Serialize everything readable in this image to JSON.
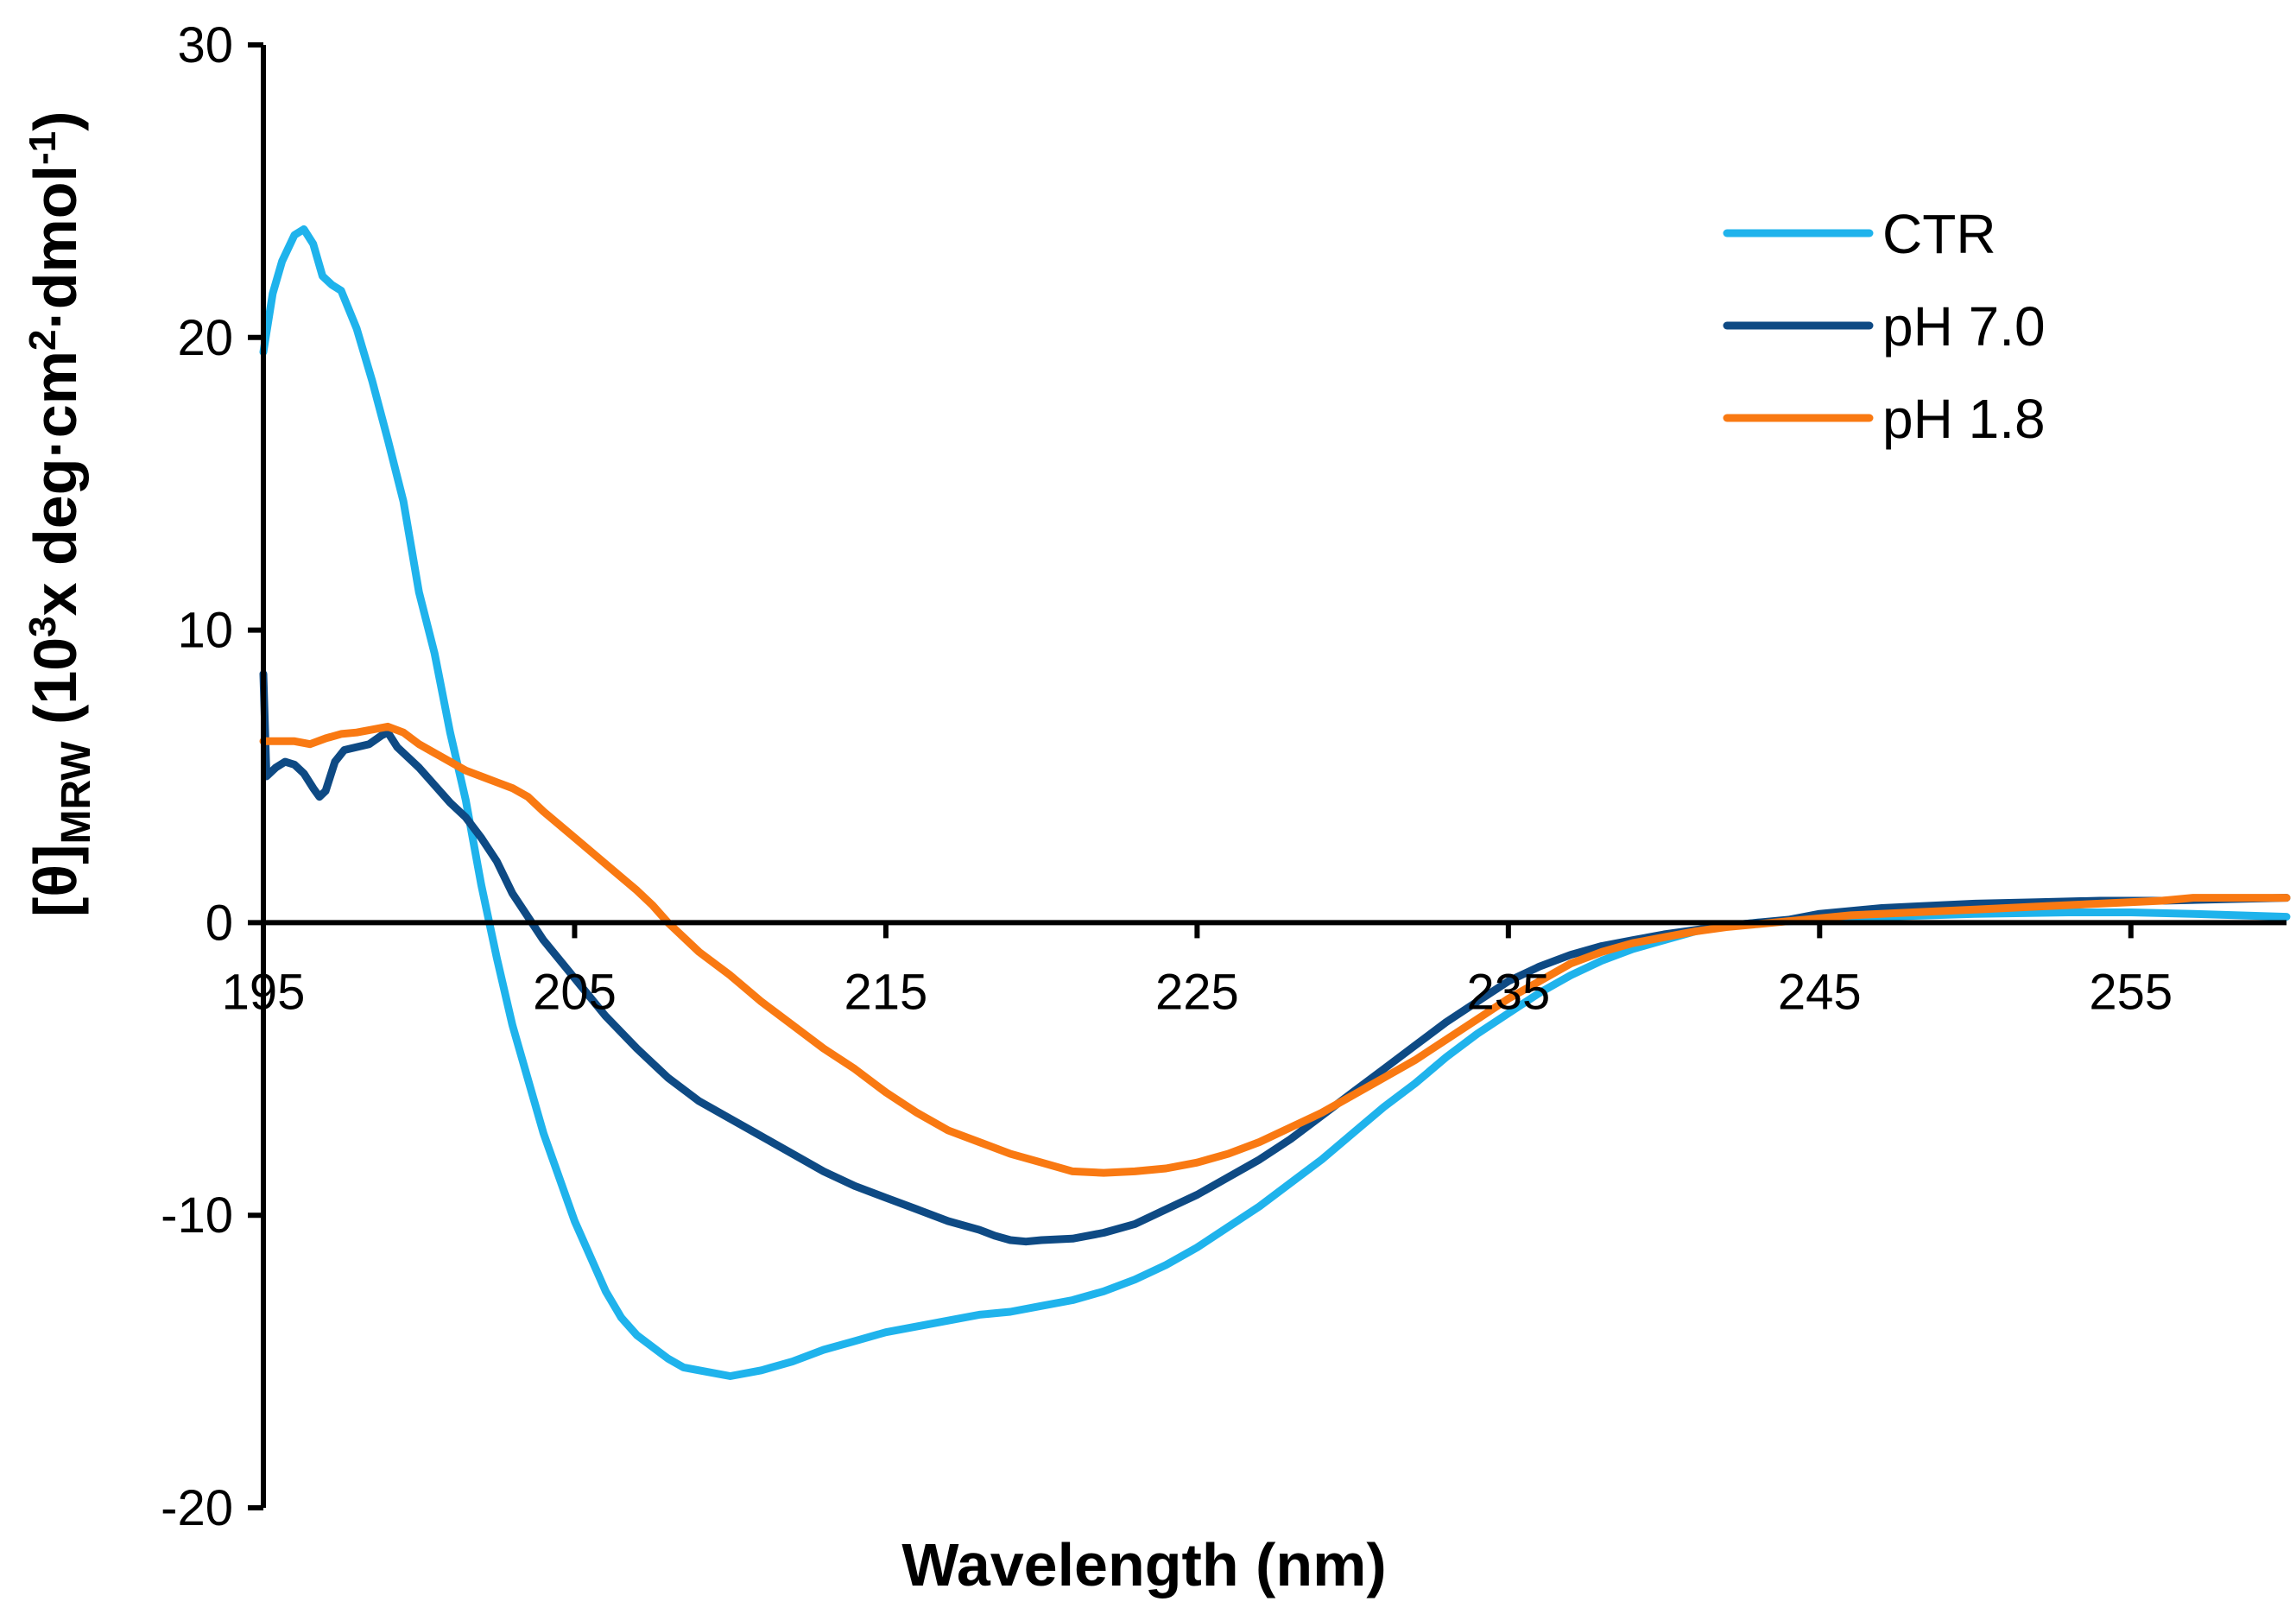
{
  "chart_data": {
    "type": "line",
    "title": "",
    "xlabel": "Wavelength (nm)",
    "ylabel": {
      "prefix": "[θ]",
      "sub": "MRW",
      "text1": " (10",
      "sup1": "3",
      "text2": "x deg·cm",
      "sup2": "2",
      "text3": "·dmol",
      "sup3": "-1",
      "text4": ")"
    },
    "xlim": [
      195,
      260
    ],
    "ylim": [
      -20,
      30
    ],
    "x_ticks": [
      195,
      205,
      215,
      225,
      235,
      245,
      255
    ],
    "x_tick_labels": [
      "195",
      "205",
      "215",
      "225",
      "235",
      "245",
      "255"
    ],
    "y_ticks": [
      -20,
      -10,
      0,
      10,
      20,
      30
    ],
    "y_tick_labels": [
      "-20",
      "-10",
      "0",
      "10",
      "20",
      "30"
    ],
    "legend_position": "top-right",
    "series": [
      {
        "name": "CTR",
        "color": "#1FB3EC",
        "points": [
          [
            195,
            19.5
          ],
          [
            195.3,
            21.5
          ],
          [
            195.6,
            22.6
          ],
          [
            196,
            23.5
          ],
          [
            196.3,
            23.7
          ],
          [
            196.6,
            23.2
          ],
          [
            196.9,
            22.1
          ],
          [
            197.2,
            21.8
          ],
          [
            197.5,
            21.6
          ],
          [
            198,
            20.3
          ],
          [
            198.5,
            18.5
          ],
          [
            199,
            16.5
          ],
          [
            199.5,
            14.4
          ],
          [
            200,
            11.3
          ],
          [
            200.5,
            9.2
          ],
          [
            201,
            6.5
          ],
          [
            201.5,
            4.2
          ],
          [
            202,
            1.3
          ],
          [
            202.5,
            -1.2
          ],
          [
            203,
            -3.5
          ],
          [
            204,
            -7.2
          ],
          [
            205,
            -10.2
          ],
          [
            206,
            -12.6
          ],
          [
            206.5,
            -13.5
          ],
          [
            207,
            -14.1
          ],
          [
            208,
            -14.9
          ],
          [
            208.5,
            -15.2
          ],
          [
            209,
            -15.3
          ],
          [
            210,
            -15.5
          ],
          [
            211,
            -15.3
          ],
          [
            212,
            -15.0
          ],
          [
            213,
            -14.6
          ],
          [
            214,
            -14.3
          ],
          [
            215,
            -14.0
          ],
          [
            216,
            -13.8
          ],
          [
            217,
            -13.6
          ],
          [
            218,
            -13.4
          ],
          [
            219,
            -13.3
          ],
          [
            220,
            -13.1
          ],
          [
            221,
            -12.9
          ],
          [
            222,
            -12.6
          ],
          [
            223,
            -12.2
          ],
          [
            224,
            -11.7
          ],
          [
            225,
            -11.1
          ],
          [
            226,
            -10.4
          ],
          [
            227,
            -9.7
          ],
          [
            228,
            -8.9
          ],
          [
            229,
            -8.1
          ],
          [
            230,
            -7.2
          ],
          [
            231,
            -6.3
          ],
          [
            232,
            -5.5
          ],
          [
            233,
            -4.6
          ],
          [
            234,
            -3.8
          ],
          [
            235,
            -3.1
          ],
          [
            236,
            -2.4
          ],
          [
            237,
            -1.8
          ],
          [
            238,
            -1.3
          ],
          [
            239,
            -0.9
          ],
          [
            240,
            -0.6
          ],
          [
            241,
            -0.3
          ],
          [
            242,
            -0.1
          ],
          [
            243,
            0.0
          ],
          [
            244,
            0.05
          ],
          [
            245,
            0.1
          ],
          [
            247,
            0.2
          ],
          [
            250,
            0.3
          ],
          [
            253,
            0.35
          ],
          [
            255,
            0.35
          ],
          [
            257,
            0.3
          ],
          [
            260,
            0.2
          ]
        ]
      },
      {
        "name": "pH 7.0",
        "color": "#0E4A84",
        "points": [
          [
            195,
            8.5
          ],
          [
            195.1,
            5.0
          ],
          [
            195.4,
            5.3
          ],
          [
            195.7,
            5.5
          ],
          [
            196,
            5.4
          ],
          [
            196.3,
            5.1
          ],
          [
            196.6,
            4.6
          ],
          [
            196.8,
            4.3
          ],
          [
            197,
            4.5
          ],
          [
            197.3,
            5.5
          ],
          [
            197.6,
            5.9
          ],
          [
            198,
            6.0
          ],
          [
            198.4,
            6.1
          ],
          [
            198.8,
            6.4
          ],
          [
            199,
            6.5
          ],
          [
            199.3,
            6.0
          ],
          [
            200,
            5.3
          ],
          [
            200.5,
            4.7
          ],
          [
            201,
            4.1
          ],
          [
            201.5,
            3.6
          ],
          [
            202,
            2.9
          ],
          [
            202.5,
            2.1
          ],
          [
            203,
            1.0
          ],
          [
            204,
            -0.6
          ],
          [
            205,
            -1.9
          ],
          [
            206,
            -3.2
          ],
          [
            207,
            -4.3
          ],
          [
            208,
            -5.3
          ],
          [
            209,
            -6.1
          ],
          [
            210,
            -6.7
          ],
          [
            211,
            -7.3
          ],
          [
            212,
            -7.9
          ],
          [
            213,
            -8.5
          ],
          [
            214,
            -9.0
          ],
          [
            215,
            -9.4
          ],
          [
            216,
            -9.8
          ],
          [
            217,
            -10.2
          ],
          [
            218,
            -10.5
          ],
          [
            218.5,
            -10.7
          ],
          [
            219,
            -10.85
          ],
          [
            219.5,
            -10.9
          ],
          [
            220,
            -10.85
          ],
          [
            221,
            -10.8
          ],
          [
            222,
            -10.6
          ],
          [
            223,
            -10.3
          ],
          [
            224,
            -9.8
          ],
          [
            225,
            -9.3
          ],
          [
            226,
            -8.7
          ],
          [
            227,
            -8.1
          ],
          [
            228,
            -7.4
          ],
          [
            229,
            -6.6
          ],
          [
            230,
            -5.8
          ],
          [
            231,
            -5.0
          ],
          [
            232,
            -4.2
          ],
          [
            233,
            -3.4
          ],
          [
            234,
            -2.7
          ],
          [
            235,
            -2.0
          ],
          [
            236,
            -1.5
          ],
          [
            237,
            -1.1
          ],
          [
            238,
            -0.8
          ],
          [
            239,
            -0.6
          ],
          [
            240,
            -0.4
          ],
          [
            241,
            -0.25
          ],
          [
            242,
            -0.1
          ],
          [
            243,
            0.0
          ],
          [
            244,
            0.1
          ],
          [
            245,
            0.3
          ],
          [
            246,
            0.4
          ],
          [
            247,
            0.5
          ],
          [
            248,
            0.55
          ],
          [
            250,
            0.65
          ],
          [
            252,
            0.7
          ],
          [
            254,
            0.75
          ],
          [
            256,
            0.75
          ],
          [
            258,
            0.8
          ],
          [
            260,
            0.85
          ]
        ]
      },
      {
        "name": "pH 1.8",
        "color": "#F97912",
        "points": [
          [
            195,
            6.2
          ],
          [
            195.5,
            6.2
          ],
          [
            196,
            6.2
          ],
          [
            196.5,
            6.1
          ],
          [
            197,
            6.3
          ],
          [
            197.5,
            6.45
          ],
          [
            198,
            6.5
          ],
          [
            198.5,
            6.6
          ],
          [
            199,
            6.7
          ],
          [
            199.5,
            6.5
          ],
          [
            200,
            6.1
          ],
          [
            200.5,
            5.8
          ],
          [
            201,
            5.5
          ],
          [
            201.5,
            5.2
          ],
          [
            202,
            5.0
          ],
          [
            202.5,
            4.8
          ],
          [
            203,
            4.6
          ],
          [
            203.5,
            4.3
          ],
          [
            204,
            3.8
          ],
          [
            205,
            2.9
          ],
          [
            206,
            2.0
          ],
          [
            207,
            1.1
          ],
          [
            207.5,
            0.6
          ],
          [
            208,
            0.0
          ],
          [
            208.5,
            -0.5
          ],
          [
            209,
            -1.0
          ],
          [
            210,
            -1.8
          ],
          [
            211,
            -2.7
          ],
          [
            212,
            -3.5
          ],
          [
            213,
            -4.3
          ],
          [
            214,
            -5.0
          ],
          [
            215,
            -5.8
          ],
          [
            216,
            -6.5
          ],
          [
            217,
            -7.1
          ],
          [
            218,
            -7.5
          ],
          [
            219,
            -7.9
          ],
          [
            220,
            -8.2
          ],
          [
            221,
            -8.5
          ],
          [
            222,
            -8.55
          ],
          [
            223,
            -8.5
          ],
          [
            224,
            -8.4
          ],
          [
            225,
            -8.2
          ],
          [
            226,
            -7.9
          ],
          [
            227,
            -7.5
          ],
          [
            228,
            -7.0
          ],
          [
            229,
            -6.5
          ],
          [
            230,
            -5.9
          ],
          [
            231,
            -5.3
          ],
          [
            232,
            -4.7
          ],
          [
            233,
            -4.0
          ],
          [
            234,
            -3.3
          ],
          [
            235,
            -2.6
          ],
          [
            236,
            -2.0
          ],
          [
            237,
            -1.4
          ],
          [
            238,
            -1.0
          ],
          [
            239,
            -0.7
          ],
          [
            240,
            -0.5
          ],
          [
            241,
            -0.3
          ],
          [
            242,
            -0.15
          ],
          [
            243,
            -0.05
          ],
          [
            244,
            0.05
          ],
          [
            245,
            0.15
          ],
          [
            246,
            0.25
          ],
          [
            248,
            0.35
          ],
          [
            250,
            0.45
          ],
          [
            252,
            0.55
          ],
          [
            254,
            0.65
          ],
          [
            256,
            0.75
          ],
          [
            257,
            0.85
          ],
          [
            258,
            0.85
          ],
          [
            260,
            0.85
          ]
        ]
      }
    ]
  }
}
